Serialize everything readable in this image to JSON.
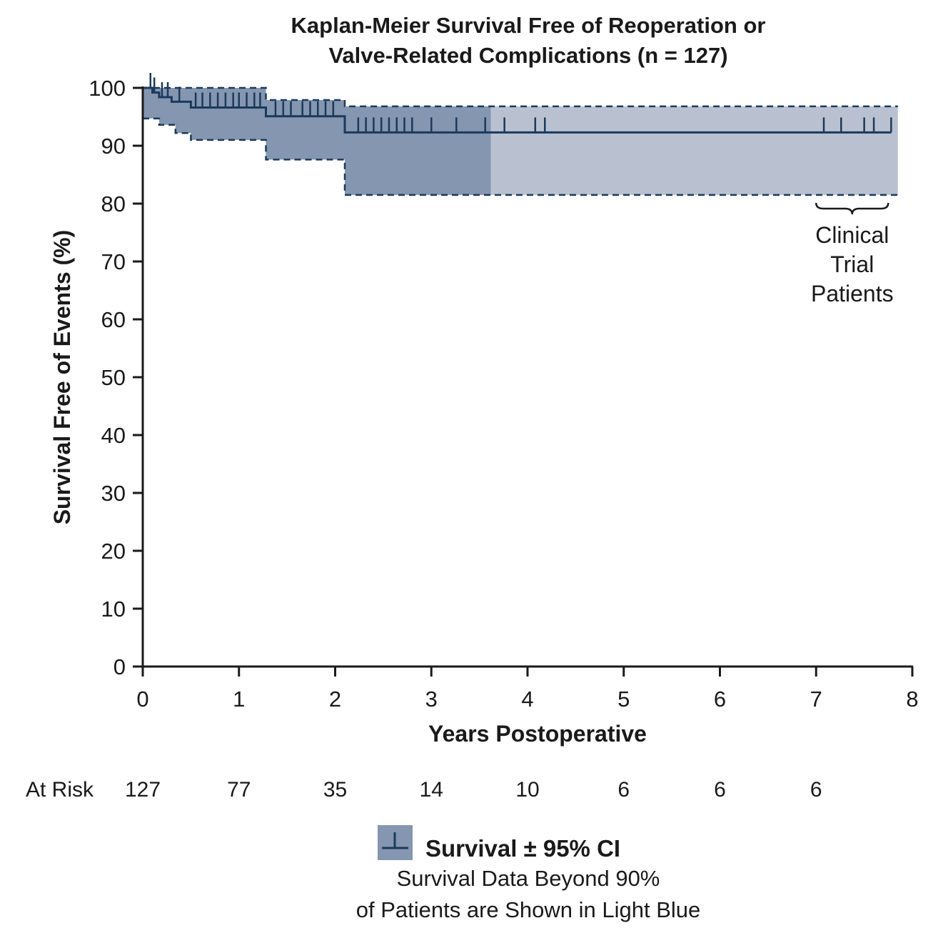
{
  "chart_data": {
    "type": "line",
    "title": [
      "Kaplan-Meier Survival Free of Reoperation or",
      "Valve-Related Complications (n = 127)"
    ],
    "xlabel": "Years Postoperative",
    "ylabel": "Survival Free of Events (%)",
    "xlim": [
      0,
      8
    ],
    "ylim": [
      0,
      100
    ],
    "xticks": [
      0,
      1,
      2,
      3,
      4,
      5,
      6,
      7,
      8
    ],
    "yticks": [
      0,
      10,
      20,
      30,
      40,
      50,
      60,
      70,
      80,
      90,
      100
    ],
    "grid": false,
    "colors": {
      "line": "#1b3a5c",
      "ci_dark": "#8496b0",
      "ci_light": "#b9c1d1"
    },
    "survival": [
      [
        0,
        100
      ],
      [
        0.1,
        99.2
      ],
      [
        0.17,
        98.4
      ],
      [
        0.3,
        97.6
      ],
      [
        0.5,
        96.6
      ],
      [
        1.28,
        95.1
      ],
      [
        2.1,
        92.3
      ],
      [
        7.78,
        92.3
      ]
    ],
    "ci_upper": [
      [
        0,
        100
      ],
      [
        1.28,
        100
      ],
      [
        1.28,
        97.9
      ],
      [
        2.1,
        97.9
      ],
      [
        2.1,
        96.8
      ],
      [
        7.85,
        96.8
      ]
    ],
    "ci_lower": [
      [
        0,
        94.7
      ],
      [
        0.17,
        94.7
      ],
      [
        0.17,
        93.6
      ],
      [
        0.34,
        93.6
      ],
      [
        0.34,
        92.2
      ],
      [
        0.5,
        92.2
      ],
      [
        0.5,
        91.0
      ],
      [
        1.28,
        91.0
      ],
      [
        1.28,
        87.6
      ],
      [
        2.1,
        87.6
      ],
      [
        2.1,
        81.5
      ],
      [
        7.85,
        81.5
      ]
    ],
    "light_region_start_x": 3.62,
    "censor_marks": [
      0.08,
      0.12,
      0.2,
      0.26,
      0.38,
      0.55,
      0.62,
      0.7,
      0.78,
      0.86,
      0.94,
      1.0,
      1.08,
      1.16,
      1.22,
      1.38,
      1.46,
      1.54,
      1.66,
      1.74,
      1.82,
      1.9,
      1.98,
      2.24,
      2.32,
      2.4,
      2.48,
      2.56,
      2.64,
      2.72,
      2.8,
      3.0,
      3.26,
      3.56,
      3.76,
      4.08,
      4.18,
      7.08,
      7.26,
      7.5,
      7.6,
      7.78
    ],
    "annotation": [
      "Clinical",
      "Trial",
      "Patients"
    ],
    "annotation_range": [
      7.0,
      7.75
    ],
    "at_risk": {
      "label": "At Risk",
      "times": [
        0,
        1,
        2,
        3,
        4,
        5,
        6,
        7
      ],
      "values": [
        "127",
        "77",
        "35",
        "14",
        "10",
        "6",
        "6",
        "6"
      ]
    },
    "legend": {
      "label": "Survival ± 95% CI",
      "note": [
        "Survival Data Beyond 90%",
        "of Patients are Shown in Light Blue"
      ]
    }
  }
}
